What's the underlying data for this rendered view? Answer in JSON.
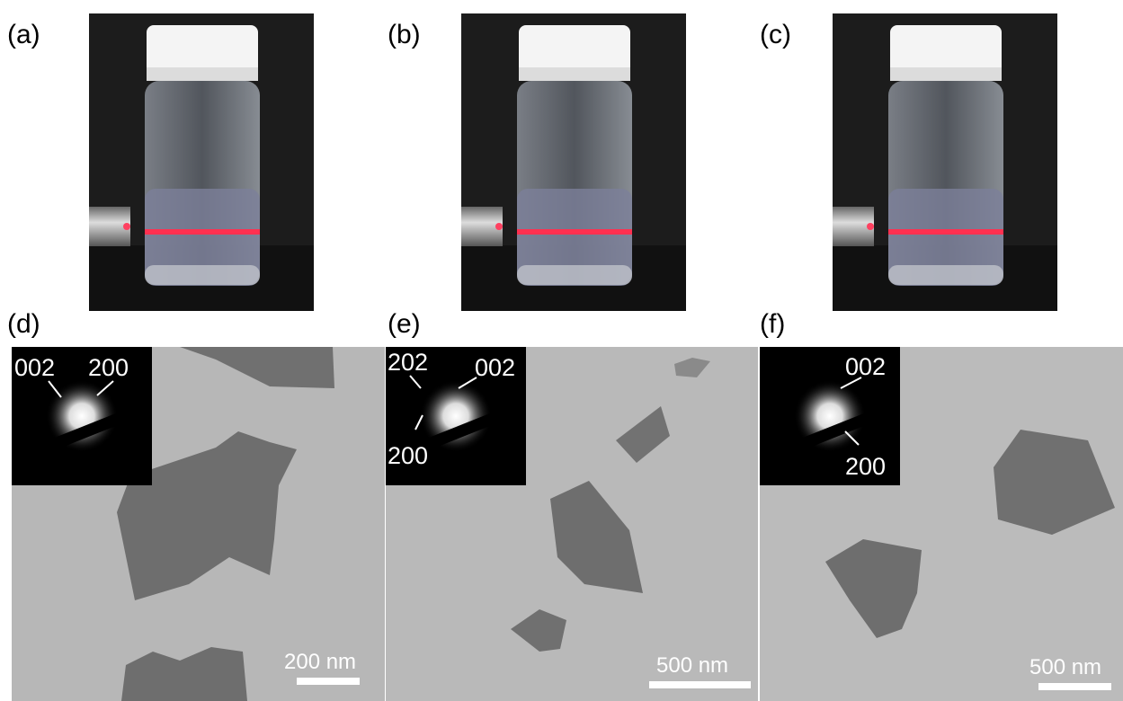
{
  "panels": [
    {
      "label": "(a)"
    },
    {
      "label": "(b)"
    },
    {
      "label": "(c)"
    },
    {
      "label": "(d)",
      "inset_labels": [
        "002",
        "200"
      ],
      "scale_bar": "200 nm"
    },
    {
      "label": "(e)",
      "inset_labels": [
        "202",
        "002",
        "200"
      ],
      "scale_bar": "500 nm"
    },
    {
      "label": "(f)",
      "inset_labels": [
        "002",
        "200"
      ],
      "scale_bar": "500 nm"
    }
  ]
}
